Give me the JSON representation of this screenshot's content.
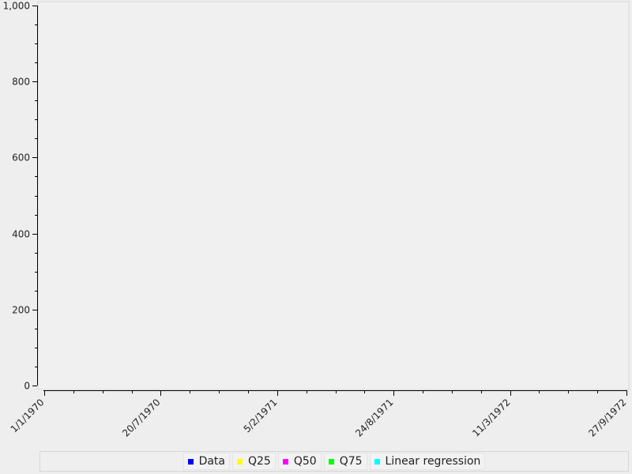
{
  "chart_data": {
    "type": "line",
    "title": "",
    "xlabel": "",
    "ylabel": "",
    "x_type": "date",
    "xlim": [
      "1970-01-01",
      "1972-09-27"
    ],
    "ylim": [
      0,
      1000
    ],
    "x_ticks": [
      "1/1/1970",
      "20/7/1970",
      "5/2/1971",
      "24/8/1971",
      "11/3/1972",
      "27/9/1972"
    ],
    "y_ticks": [
      "0",
      "200",
      "400",
      "600",
      "800",
      "1,000"
    ],
    "grid": false,
    "legend_position": "bottom",
    "series": [
      {
        "name": "Data",
        "color": "#0000ff",
        "x": [],
        "y": []
      },
      {
        "name": "Q25",
        "color": "#ffff00",
        "x": [],
        "y": []
      },
      {
        "name": "Q50",
        "color": "#ff00ff",
        "x": [],
        "y": []
      },
      {
        "name": "Q75",
        "color": "#00ff00",
        "x": [],
        "y": []
      },
      {
        "name": "Linear regression",
        "color": "#00ffff",
        "x": [],
        "y": []
      }
    ]
  }
}
